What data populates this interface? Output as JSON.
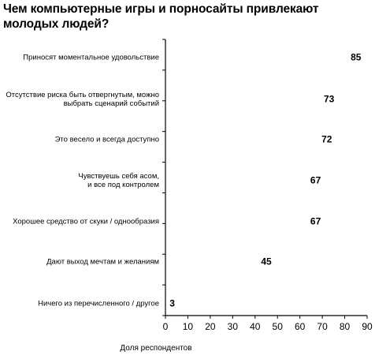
{
  "chart_data": {
    "type": "bar",
    "orientation": "horizontal",
    "title": "Чем компьютерные игры и порносайты привлекают молодых людей?",
    "xlabel": "Доля респондентов",
    "ylabel": "",
    "xlim": [
      0,
      90
    ],
    "xticks": [
      "0",
      "10",
      "20",
      "30",
      "40",
      "50",
      "60",
      "70",
      "80",
      "90"
    ],
    "grid": false,
    "categories": [
      [
        "Приносят моментальное удовольствие"
      ],
      [
        "Отсутствие риска быть отвергнутым, можно",
        "выбрать сценарий событий"
      ],
      [
        "Это весело и всегда доступно"
      ],
      [
        "Чувствуешь себя асом,",
        "и все под контролем"
      ],
      [
        "Хорошее средство от скуки / однообразия"
      ],
      [
        "Дают выход мечтам и желаниям"
      ],
      [
        "Ничего из перечисленного / другое"
      ]
    ],
    "values": [
      85,
      73,
      72,
      67,
      67,
      45,
      3
    ],
    "value_labels": [
      "85",
      "73",
      "72",
      "67",
      "67",
      "45",
      "3"
    ]
  }
}
